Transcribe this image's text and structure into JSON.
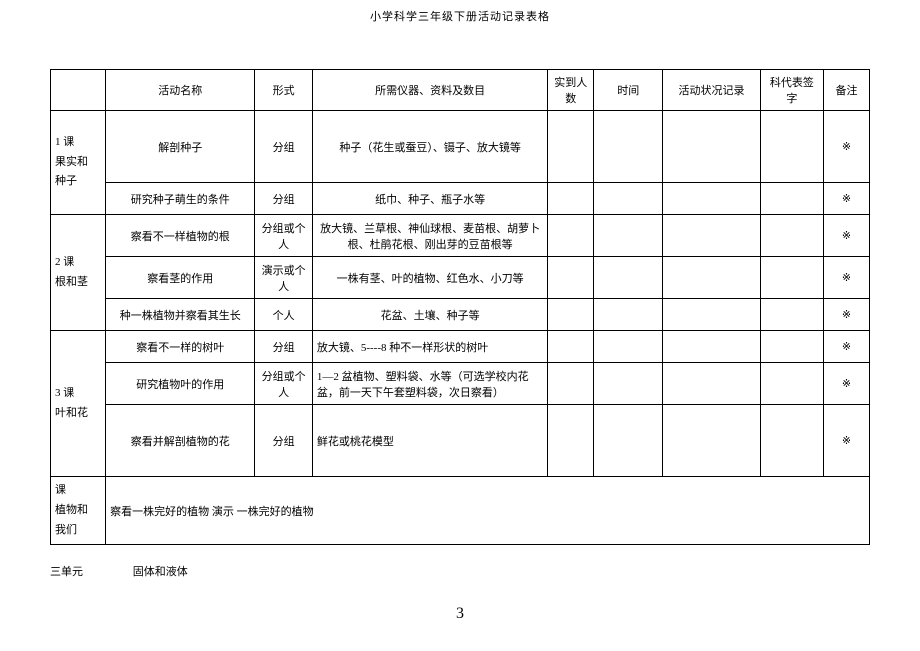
{
  "doc": {
    "title": "小学科学三年级下册活动记录表格",
    "footer_unit": "三单元",
    "footer_topic": "固体和液体",
    "page_number": "3"
  },
  "table": {
    "headers": {
      "activity_name": "活动名称",
      "form": "形式",
      "materials": "所需仪器、资料及数目",
      "arrived": "实到人数",
      "time": "时间",
      "status": "活动状况记录",
      "teacher_sig": "科代表签字",
      "note": "备注"
    },
    "sections": [
      {
        "label": "1 课\n果实和\n种子",
        "rows": [
          {
            "activity": "解剖种子",
            "form": "分组",
            "materials": "种子（花生或蚕豆）、镊子、放大镜等",
            "note": "※",
            "mat_align": "center",
            "tall": true
          },
          {
            "activity": "研究种子萌生的条件",
            "form": "分组",
            "materials": "纸巾、种子、瓶子水等",
            "note": "※",
            "mat_align": "center"
          }
        ]
      },
      {
        "label": "2 课\n根和茎",
        "rows": [
          {
            "activity": "察看不一样植物的根",
            "form": "分组或个人",
            "materials": "放大镜、兰草根、神仙球根、麦苗根、胡萝卜根、杜鹃花根、刚出芽的豆苗根等",
            "note": "※",
            "mat_align": "center",
            "med": true
          },
          {
            "activity": "察看茎的作用",
            "form": "演示或个人",
            "materials": "一株有茎、叶的植物、红色水、小刀等",
            "note": "※",
            "mat_align": "center",
            "med": true
          },
          {
            "activity": "种一株植物并察看其生长",
            "form": "个人",
            "materials": "花盆、土壤、种子等",
            "note": "※",
            "mat_align": "center"
          }
        ]
      },
      {
        "label": "3 课\n叶和花",
        "rows": [
          {
            "activity": "察看不一样的树叶",
            "form": "分组",
            "materials": "放大镜、5----8 种不一样形状的树叶",
            "note": "※",
            "mat_align": "left"
          },
          {
            "activity": "研究植物叶的作用",
            "form": "分组或个人",
            "materials": "1—2 盆植物、塑料袋、水等（可选学校内花盆，前一天下午套塑料袋，次日察看）",
            "note": "※",
            "mat_align": "left",
            "med": true
          },
          {
            "activity": "察看并解剖植物的花",
            "form": "分组",
            "materials": "鲜花或桃花模型",
            "note": "※",
            "mat_align": "left",
            "tall": true
          }
        ]
      },
      {
        "label": "课\n植物和\n我们",
        "rows": [
          {
            "activity": "察看一株完好的植物  演示 一株完好的植物",
            "colspan_full": true,
            "med": true
          }
        ]
      }
    ]
  }
}
